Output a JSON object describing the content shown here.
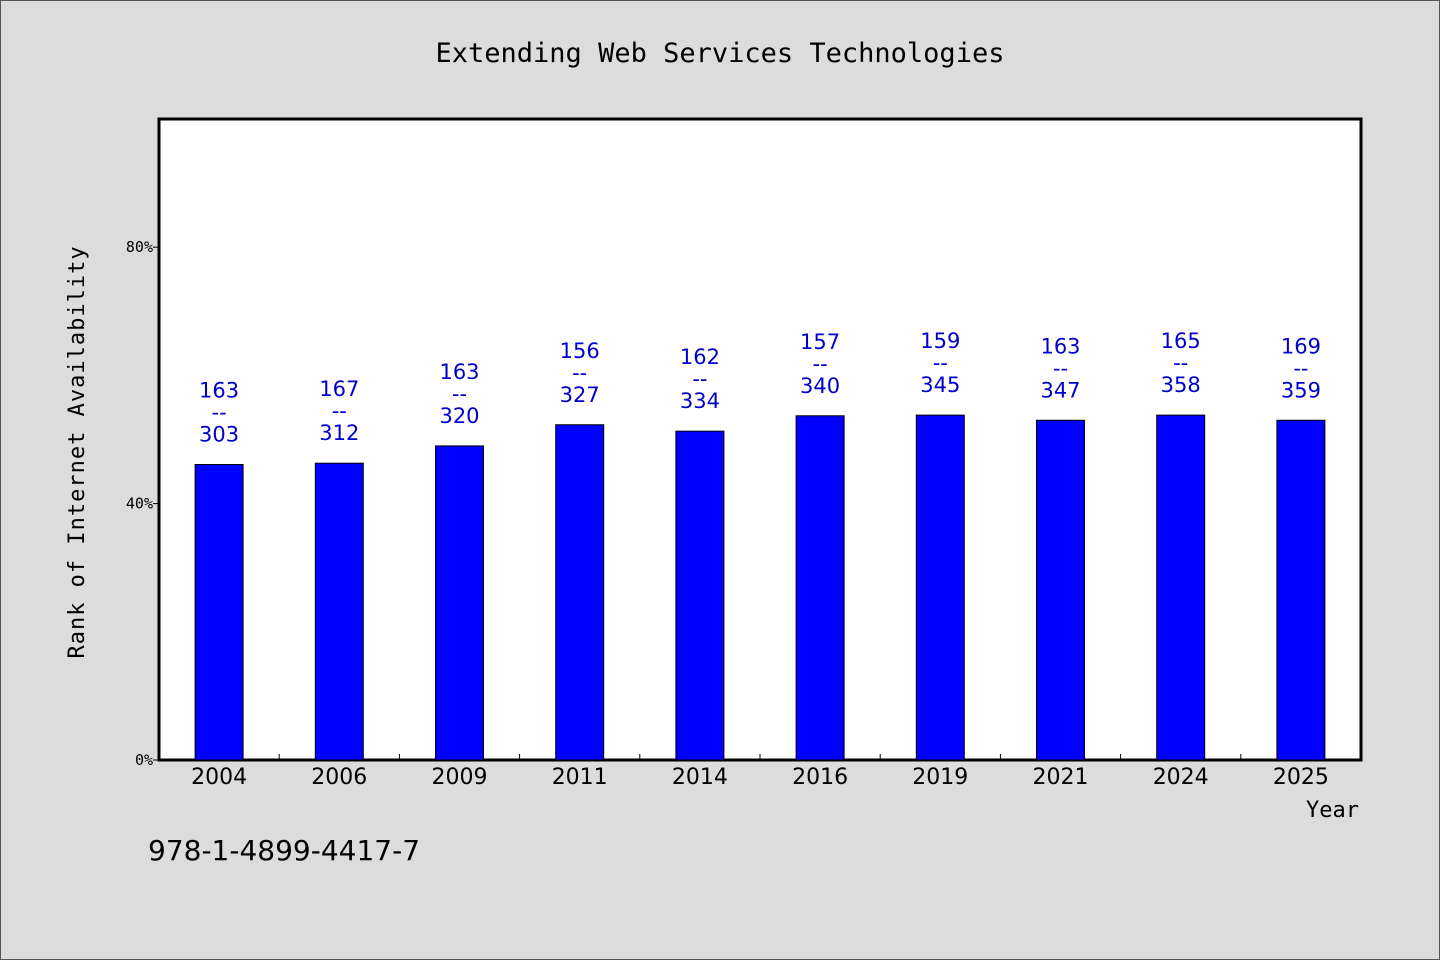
{
  "chart_data": {
    "type": "bar",
    "title": "Extending Web Services Technologies",
    "xlabel": "Year",
    "ylabel": "Rank of Internet Availability",
    "categories": [
      "2004",
      "2006",
      "2009",
      "2011",
      "2014",
      "2016",
      "2019",
      "2021",
      "2024",
      "2025"
    ],
    "series": [
      {
        "values": [
          46.1,
          46.3,
          49.0,
          52.3,
          51.3,
          53.7,
          53.8,
          53.0,
          53.8,
          53.0
        ],
        "color": "#0000ff"
      }
    ],
    "data_labels": [
      {
        "top": "163",
        "sep": "--",
        "bottom": "303"
      },
      {
        "top": "167",
        "sep": "--",
        "bottom": "312"
      },
      {
        "top": "163",
        "sep": "--",
        "bottom": "320"
      },
      {
        "top": "156",
        "sep": "--",
        "bottom": "327"
      },
      {
        "top": "162",
        "sep": "--",
        "bottom": "334"
      },
      {
        "top": "157",
        "sep": "--",
        "bottom": "340"
      },
      {
        "top": "159",
        "sep": "--",
        "bottom": "345"
      },
      {
        "top": "163",
        "sep": "--",
        "bottom": "347"
      },
      {
        "top": "165",
        "sep": "--",
        "bottom": "358"
      },
      {
        "top": "169",
        "sep": "--",
        "bottom": "359"
      }
    ],
    "label_color": "#0000cc",
    "yticks": [
      0,
      40,
      80
    ],
    "ytick_labels": [
      "0%",
      "40%",
      "80%"
    ],
    "ylim": [
      0,
      100
    ],
    "grid": false,
    "legend": "none"
  },
  "footer": {
    "isbn": "978-1-4899-4417-7"
  }
}
